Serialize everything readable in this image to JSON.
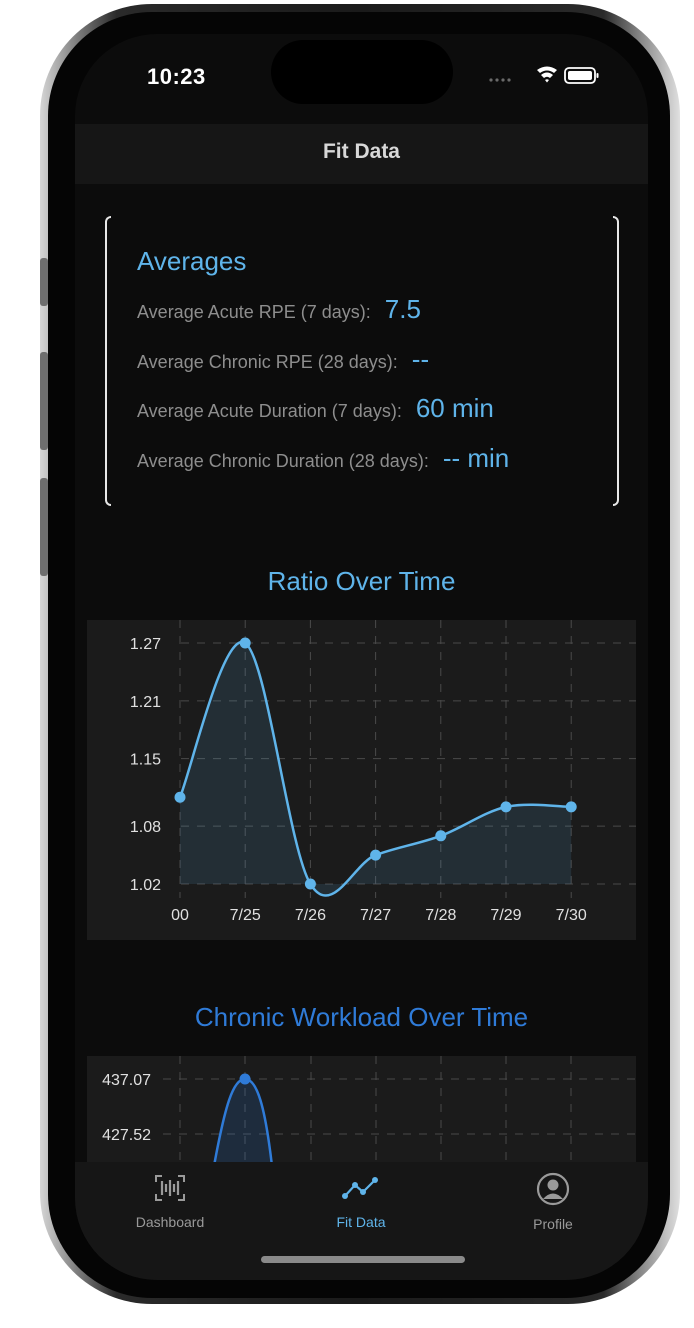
{
  "status_bar": {
    "time": "10:23",
    "icons": [
      "signal-dots-icon",
      "wifi-icon",
      "battery-icon"
    ]
  },
  "nav": {
    "title": "Fit Data"
  },
  "averages": {
    "title": "Averages",
    "rows": [
      {
        "label": "Average Acute RPE (7 days):",
        "value": "7.5"
      },
      {
        "label": "Average Chronic RPE (28 days):",
        "value": "--"
      },
      {
        "label": "Average Acute Duration (7 days):",
        "value": "60 min"
      },
      {
        "label": "Average Chronic Duration (28 days):",
        "value": "-- min"
      }
    ]
  },
  "ratio_chart": {
    "title": "Ratio Over Time"
  },
  "workload_chart": {
    "title": "Chronic Workload Over Time"
  },
  "colors": {
    "accent": "#5fb4ea",
    "workload_accent": "#2f7bd8",
    "background": "#0c0c0c",
    "panel": "#1b1b1b"
  },
  "chart_data": [
    {
      "type": "area",
      "title": "Ratio Over Time",
      "categories": [
        "00",
        "7/25",
        "7/26",
        "7/27",
        "7/28",
        "7/29",
        "7/30"
      ],
      "y_ticks": [
        "1.27",
        "1.21",
        "1.15",
        "1.08",
        "1.02"
      ],
      "ylim": [
        1.02,
        1.27
      ],
      "values": [
        1.11,
        1.27,
        1.02,
        1.05,
        1.07,
        1.1,
        1.1
      ],
      "grid": true,
      "legend": "none"
    },
    {
      "type": "area",
      "title": "Chronic Workload Over Time",
      "y_ticks": [
        "437.07",
        "427.52"
      ],
      "ylim": [
        427.52,
        437.07
      ],
      "values_visible": [
        437.07
      ],
      "grid": true,
      "legend": "none"
    }
  ],
  "tab_bar": {
    "tabs": [
      {
        "label": "Dashboard",
        "icon": "barcode-icon"
      },
      {
        "label": "Fit Data",
        "icon": "line-chart-icon"
      },
      {
        "label": "Profile",
        "icon": "profile-icon"
      }
    ],
    "active": "Fit Data"
  }
}
